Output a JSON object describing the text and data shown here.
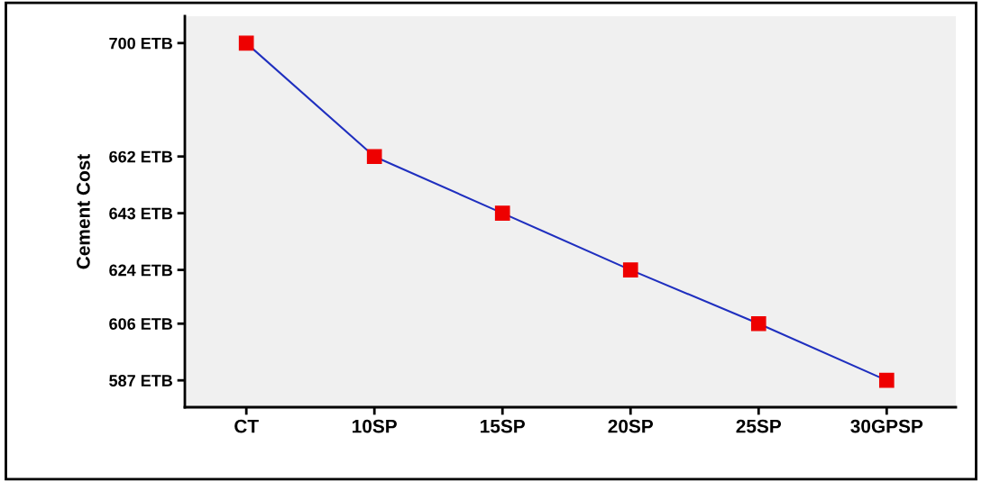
{
  "chart_data": {
    "type": "line",
    "ylabel": "Cement Cost",
    "categories": [
      "CT",
      "10SP",
      "15SP",
      "20SP",
      "25SP",
      "30GPSP"
    ],
    "series": [
      {
        "color": "#1f2fbf",
        "values": [
          700,
          662,
          643,
          624,
          606,
          587
        ],
        "colors": [
          "#ee0000",
          "#ee0000",
          "#ee0000",
          "#ee0000",
          "#ee0000",
          "#ee0000"
        ]
      }
    ],
    "marker": "square",
    "line_style": "solid",
    "ylim": [
      578,
      709
    ],
    "yticks": [
      {
        "value": 587,
        "label": "587 ETB"
      },
      {
        "value": 606,
        "label": "606 ETB"
      },
      {
        "value": 624,
        "label": "624 ETB"
      },
      {
        "value": 643,
        "label": "643 ETB"
      },
      {
        "value": 662,
        "label": "662 ETB"
      },
      {
        "value": 700,
        "label": "700 ETB"
      }
    ],
    "grid": false,
    "legend": false
  }
}
